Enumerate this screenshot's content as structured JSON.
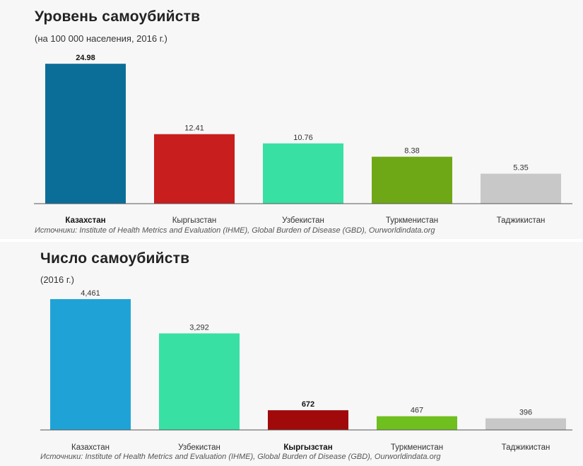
{
  "chart_data": [
    {
      "type": "bar",
      "title": "Уровень самоубийств",
      "subtitle": "(на 100 000 населения, 2016 г.)",
      "source": "Источники: Institute of Health Metrics and Evaluation (IHME), Global Burden of Disease (GBD), Ourworldindata.org",
      "categories": [
        "Казахстан",
        "Кыргызстан",
        "Узбекистан",
        "Туркменистан",
        "Таджикистан"
      ],
      "values": [
        24.98,
        12.41,
        10.76,
        8.38,
        5.35
      ],
      "value_labels": [
        "24.98",
        "12.41",
        "10.76",
        "8.38",
        "5.35"
      ],
      "colors": [
        "#0b6e99",
        "#c81e1e",
        "#38e0a4",
        "#6fa817",
        "#c8c8c8"
      ],
      "highlight": "Казахстан",
      "ylim": [
        0,
        25
      ]
    },
    {
      "type": "bar",
      "title": "Число самоубийств",
      "subtitle": "(2016 г.)",
      "source": "Источники: Institute of Health Metrics and Evaluation (IHME), Global Burden of Disease (GBD), Ourworldindata.org",
      "categories": [
        "Казахстан",
        "Узбекистан",
        "Кыргызстан",
        "Туркменистан",
        "Таджикистан"
      ],
      "values": [
        4461,
        3292,
        672,
        467,
        396
      ],
      "value_labels": [
        "4,461",
        "3,292",
        "672",
        "467",
        "396"
      ],
      "colors": [
        "#1fa3d6",
        "#38e0a4",
        "#a00a0a",
        "#6fbf1f",
        "#c8c8c8"
      ],
      "highlight": "Кыргызстан",
      "ylim": [
        0,
        4461
      ]
    }
  ]
}
